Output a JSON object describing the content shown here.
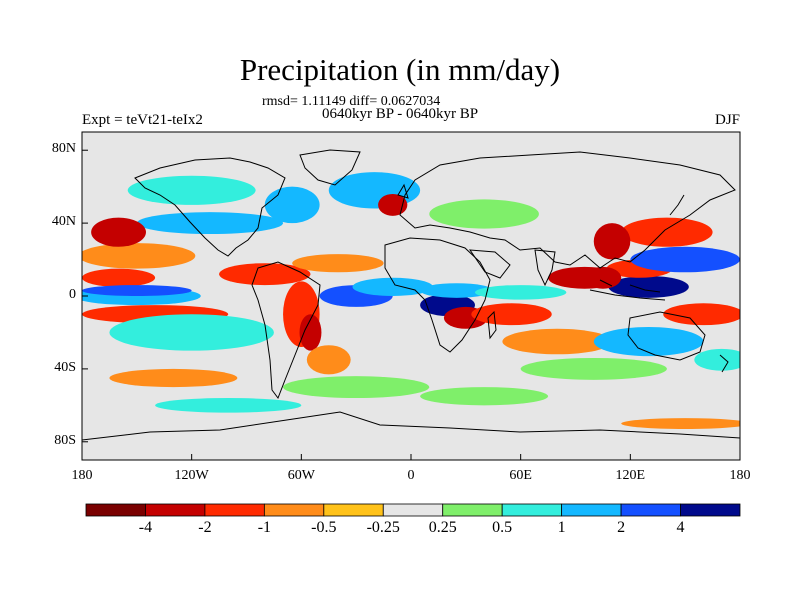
{
  "header": {
    "title": "Precipitation (in mm/day)",
    "stats": "rmsd= 1.11149 diff= 0.0627034",
    "period": "0640kyr BP - 0640kyr BP",
    "experiment": "Expt = teVt21-teIx2",
    "season": "DJF"
  },
  "axes": {
    "lat_ticks": [
      {
        "value": 80,
        "label": "80N"
      },
      {
        "value": 40,
        "label": "40N"
      },
      {
        "value": 0,
        "label": "0"
      },
      {
        "value": -40,
        "label": "40S"
      },
      {
        "value": -80,
        "label": "80S"
      }
    ],
    "lon_ticks": [
      {
        "value": -180,
        "label": "180"
      },
      {
        "value": -120,
        "label": "120W"
      },
      {
        "value": -60,
        "label": "60W"
      },
      {
        "value": 0,
        "label": "0"
      },
      {
        "value": 60,
        "label": "60E"
      },
      {
        "value": 120,
        "label": "120E"
      },
      {
        "value": 180,
        "label": "180"
      }
    ],
    "lat_range": [
      -90,
      90
    ],
    "lon_range": [
      -180,
      180
    ]
  },
  "colorbar": {
    "levels": [
      "-4",
      "-2",
      "-1",
      "-0.5",
      "-0.25",
      "0.25",
      "0.5",
      "1",
      "2",
      "4"
    ],
    "colors": [
      "#7a0000",
      "#c40000",
      "#ff2a00",
      "#ff8c1a",
      "#ffc21a",
      "#e6e6e6",
      "#7fef6a",
      "#33eedd",
      "#14b8ff",
      "#1450ff",
      "#000a8c"
    ]
  },
  "anomaly_regions": [
    {
      "lon": -150,
      "lat": 22,
      "rx": 32,
      "ry": 7,
      "level": 3
    },
    {
      "lon": -160,
      "lat": 10,
      "rx": 20,
      "ry": 5,
      "level": 2
    },
    {
      "lon": -150,
      "lat": 0,
      "rx": 35,
      "ry": 5,
      "level": 8
    },
    {
      "lon": -150,
      "lat": 3,
      "rx": 30,
      "ry": 3,
      "level": 9
    },
    {
      "lon": -140,
      "lat": -10,
      "rx": 40,
      "ry": 5,
      "level": 2
    },
    {
      "lon": -120,
      "lat": -20,
      "rx": 45,
      "ry": 10,
      "level": 7
    },
    {
      "lon": -110,
      "lat": 40,
      "rx": 40,
      "ry": 6,
      "level": 8
    },
    {
      "lon": -160,
      "lat": 35,
      "rx": 15,
      "ry": 8,
      "level": 1
    },
    {
      "lon": -120,
      "lat": 58,
      "rx": 35,
      "ry": 8,
      "level": 7
    },
    {
      "lon": -65,
      "lat": 50,
      "rx": 15,
      "ry": 10,
      "level": 8
    },
    {
      "lon": -20,
      "lat": 58,
      "rx": 25,
      "ry": 10,
      "level": 8
    },
    {
      "lon": -10,
      "lat": 50,
      "rx": 8,
      "ry": 6,
      "level": 1
    },
    {
      "lon": 40,
      "lat": 45,
      "rx": 30,
      "ry": 8,
      "level": 6
    },
    {
      "lon": -80,
      "lat": 12,
      "rx": 25,
      "ry": 6,
      "level": 2
    },
    {
      "lon": -40,
      "lat": 18,
      "rx": 25,
      "ry": 5,
      "level": 3
    },
    {
      "lon": -60,
      "lat": -10,
      "rx": 10,
      "ry": 18,
      "level": 2
    },
    {
      "lon": -55,
      "lat": -20,
      "rx": 6,
      "ry": 10,
      "level": 1
    },
    {
      "lon": -30,
      "lat": 0,
      "rx": 20,
      "ry": 6,
      "level": 9
    },
    {
      "lon": -10,
      "lat": 5,
      "rx": 22,
      "ry": 5,
      "level": 8
    },
    {
      "lon": -45,
      "lat": -35,
      "rx": 12,
      "ry": 8,
      "level": 3
    },
    {
      "lon": 20,
      "lat": -5,
      "rx": 15,
      "ry": 6,
      "level": 10
    },
    {
      "lon": 25,
      "lat": 3,
      "rx": 20,
      "ry": 4,
      "level": 8
    },
    {
      "lon": 30,
      "lat": -12,
      "rx": 12,
      "ry": 6,
      "level": 1
    },
    {
      "lon": 55,
      "lat": -10,
      "rx": 22,
      "ry": 6,
      "level": 2
    },
    {
      "lon": 60,
      "lat": 2,
      "rx": 25,
      "ry": 4,
      "level": 7
    },
    {
      "lon": 80,
      "lat": -25,
      "rx": 30,
      "ry": 7,
      "level": 3
    },
    {
      "lon": 95,
      "lat": 10,
      "rx": 20,
      "ry": 6,
      "level": 1
    },
    {
      "lon": 130,
      "lat": 5,
      "rx": 22,
      "ry": 6,
      "level": 10
    },
    {
      "lon": 125,
      "lat": 15,
      "rx": 18,
      "ry": 5,
      "level": 2
    },
    {
      "lon": 105,
      "lat": 10,
      "rx": 10,
      "ry": 6,
      "level": 1
    },
    {
      "lon": 150,
      "lat": 20,
      "rx": 30,
      "ry": 7,
      "level": 9
    },
    {
      "lon": 160,
      "lat": -10,
      "rx": 22,
      "ry": 6,
      "level": 2
    },
    {
      "lon": 140,
      "lat": 35,
      "rx": 25,
      "ry": 8,
      "level": 2
    },
    {
      "lon": 110,
      "lat": 30,
      "rx": 10,
      "ry": 10,
      "level": 1
    },
    {
      "lon": 130,
      "lat": -25,
      "rx": 30,
      "ry": 8,
      "level": 8
    },
    {
      "lon": 170,
      "lat": -35,
      "rx": 15,
      "ry": 6,
      "level": 7
    },
    {
      "lon": 100,
      "lat": -40,
      "rx": 40,
      "ry": 6,
      "level": 6
    },
    {
      "lon": -130,
      "lat": -45,
      "rx": 35,
      "ry": 5,
      "level": 3
    },
    {
      "lon": -30,
      "lat": -50,
      "rx": 40,
      "ry": 6,
      "level": 6
    },
    {
      "lon": 40,
      "lat": -55,
      "rx": 35,
      "ry": 5,
      "level": 6
    },
    {
      "lon": -100,
      "lat": -60,
      "rx": 40,
      "ry": 4,
      "level": 7
    },
    {
      "lon": 150,
      "lat": -70,
      "rx": 35,
      "ry": 3,
      "level": 3
    }
  ]
}
